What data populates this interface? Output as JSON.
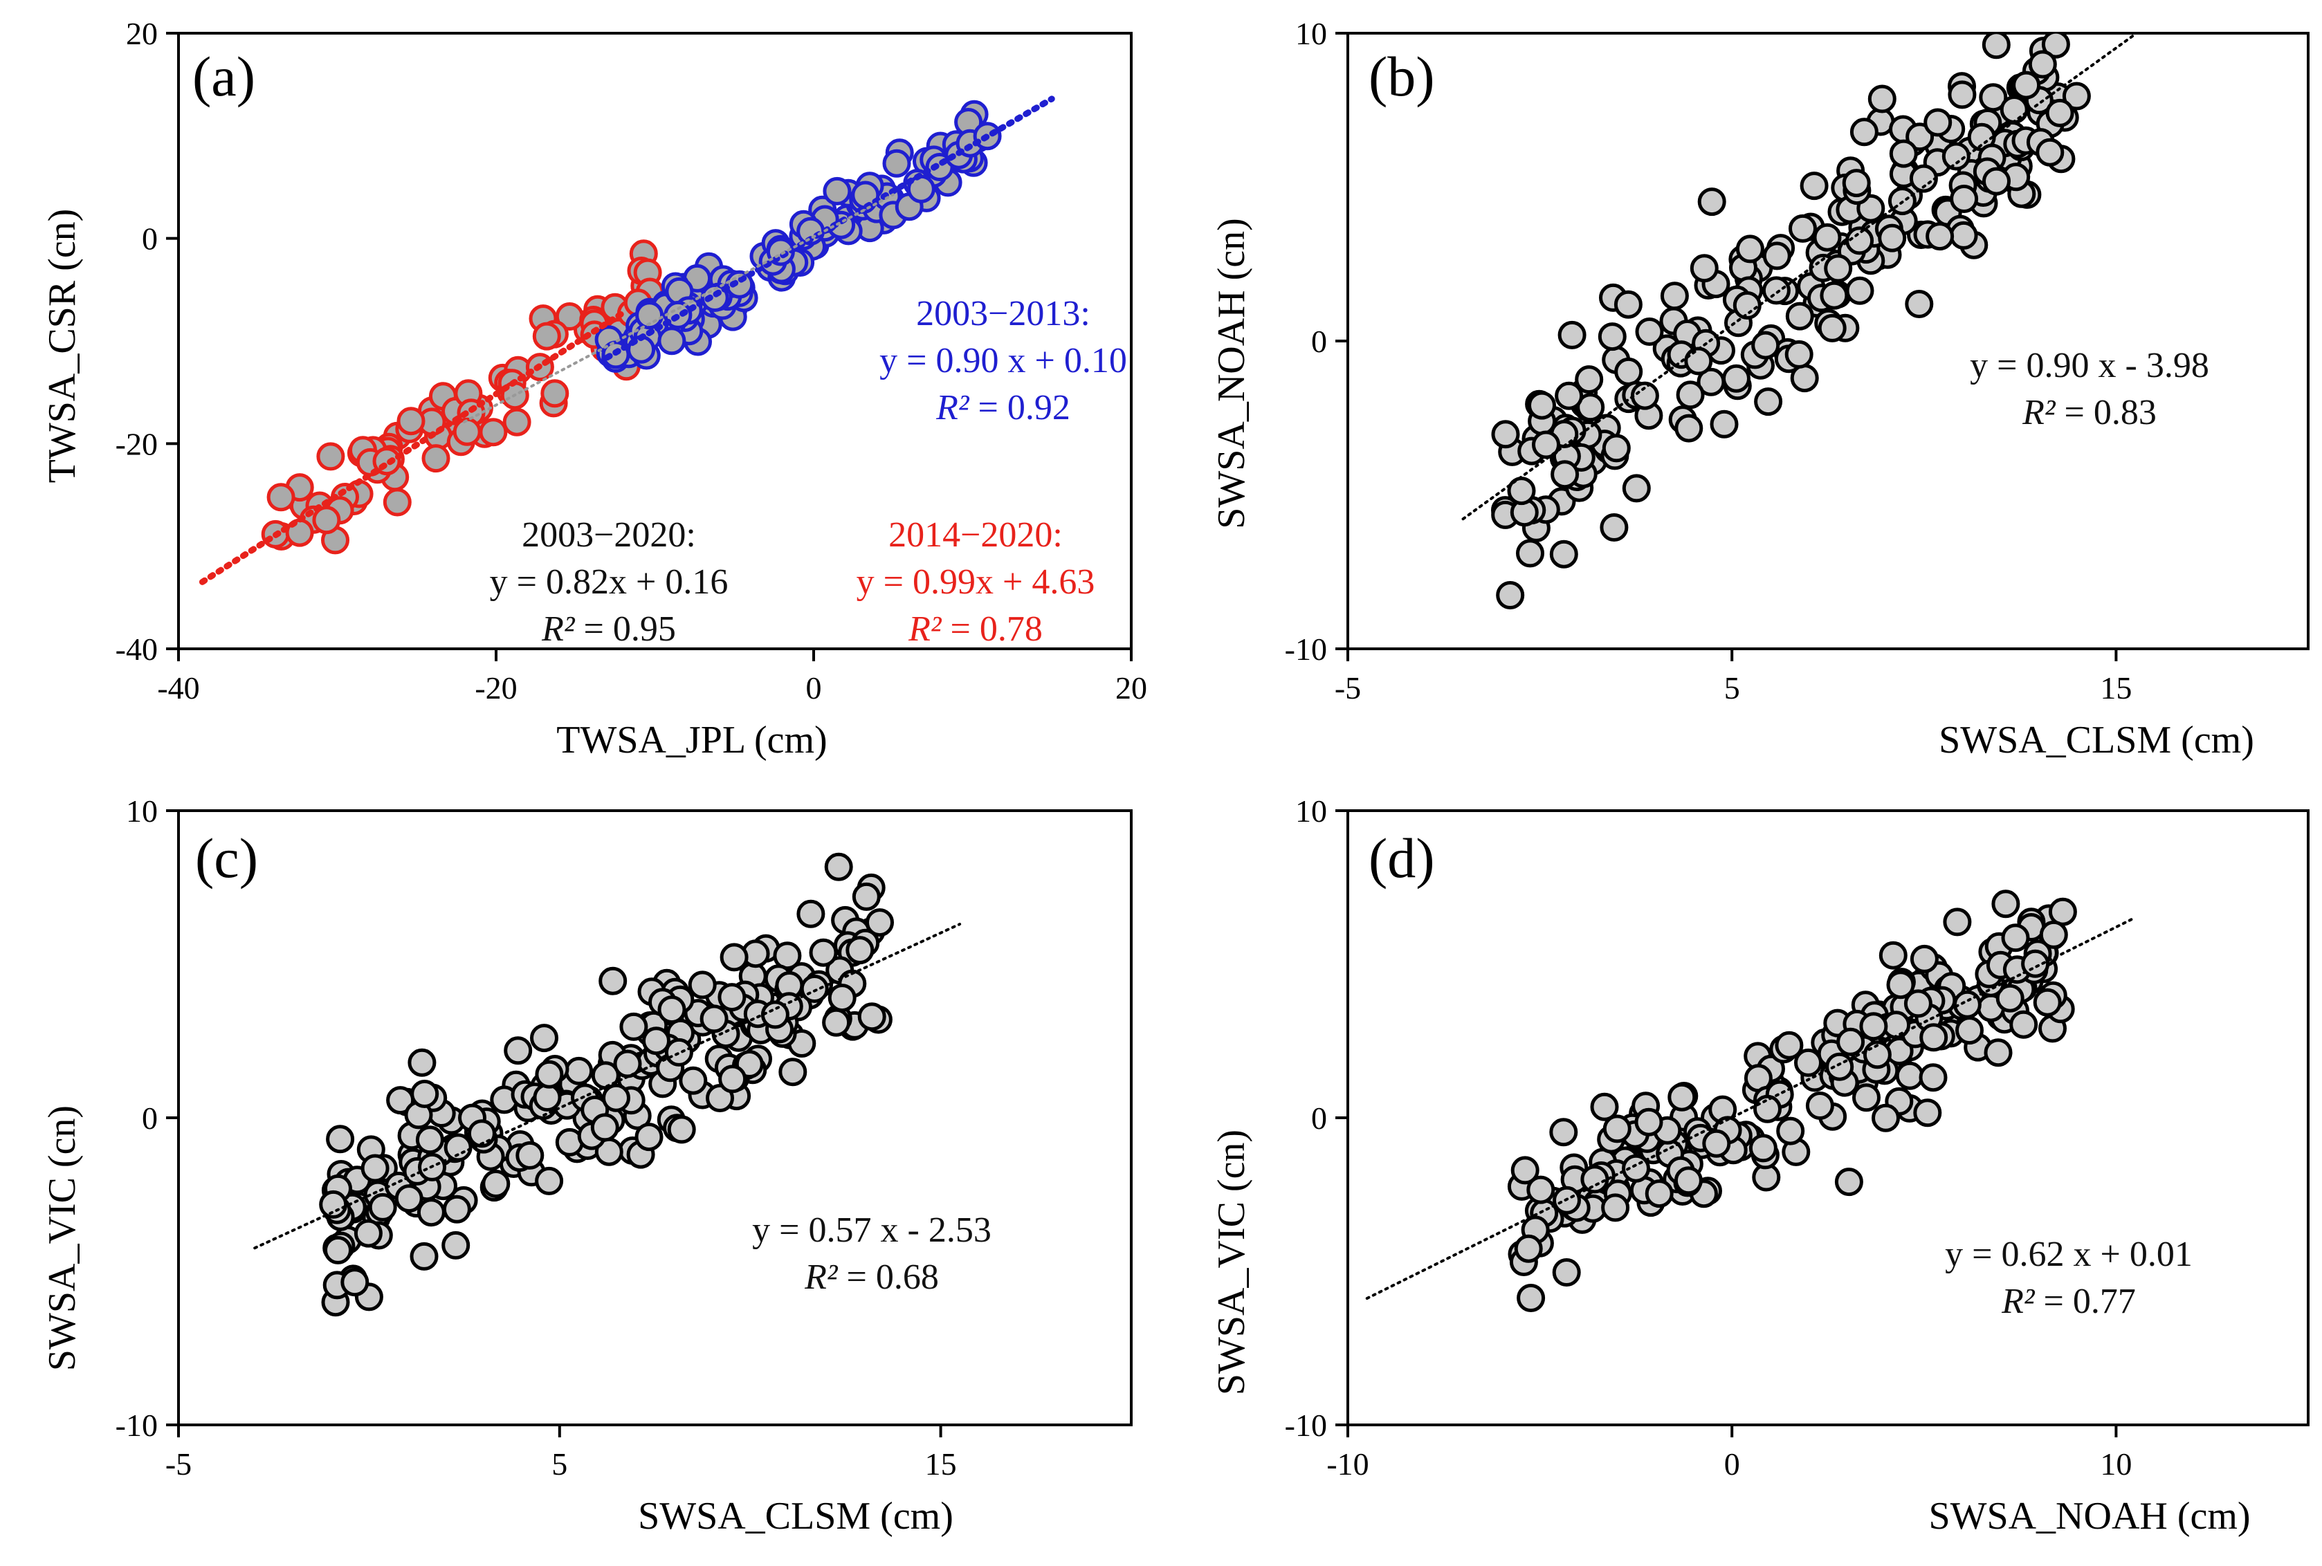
{
  "chart_data": [
    {
      "id": "a",
      "type": "scatter",
      "panel_label": "(a)",
      "xlabel": "TWSA_JPL (cm)",
      "ylabel": "TWSA_CSR (cn)",
      "xlim": [
        -40,
        20
      ],
      "ylim": [
        -40,
        20
      ],
      "xticks": [
        -40,
        -20,
        0,
        20
      ],
      "yticks": [
        -40,
        -20,
        0,
        20
      ],
      "xtick_labels": [
        "-40",
        "-20",
        "0",
        "20"
      ],
      "ytick_labels": [
        "-40",
        "-20",
        "0",
        "20"
      ],
      "series": [
        {
          "name": "2014-2020",
          "edge_color": "#e8221b",
          "fill_color": "#aaaaaa",
          "x_range": [
            -34,
            -10
          ],
          "slope": 0.99,
          "intercept": 4.63,
          "n": 84,
          "noise": 2.4
        },
        {
          "name": "2003-2013",
          "edge_color": "#1f1fd0",
          "fill_color": "#aaaaaa",
          "x_range": [
            -13,
            11
          ],
          "slope": 0.9,
          "intercept": 0.1,
          "n": 132,
          "noise": 1.7
        }
      ],
      "trendlines": [
        {
          "slope": 0.99,
          "intercept": 4.63,
          "x": [
            -38.5,
            -12
          ],
          "color": "#e8221b",
          "style": "thick"
        },
        {
          "slope": 0.9,
          "intercept": 0.1,
          "x": [
            -13,
            15
          ],
          "color": "#1f1fd0",
          "style": "thick"
        },
        {
          "slope": 0.82,
          "intercept": 0.16,
          "x": [
            -22,
            5
          ],
          "color": "#999999",
          "style": "thin"
        }
      ],
      "annotations": [
        {
          "lines": [
            "2003−2013:",
            "y = 0.90 x + 0.10",
            "R² = 0.92"
          ],
          "color": "#1f1fd0"
        },
        {
          "lines": [
            "2003−2020:",
            "y = 0.82x + 0.16",
            "R² = 0.95"
          ],
          "color": "#111111"
        },
        {
          "lines": [
            "2014−2020:",
            "y = 0.99x + 4.63",
            "R² = 0.78"
          ],
          "color": "#e8221b"
        }
      ]
    },
    {
      "id": "b",
      "type": "scatter",
      "panel_label": "(b)",
      "xlabel": "SWSA_CLSM (cm)",
      "ylabel": "SWSA_NOAH (cn)",
      "xlim": [
        -5,
        20
      ],
      "ylim": [
        -10,
        10
      ],
      "xticks": [
        -5,
        5,
        15
      ],
      "yticks": [
        -10,
        0,
        10
      ],
      "xtick_labels": [
        "-5",
        "5",
        "15"
      ],
      "ytick_labels": [
        "-10",
        "0",
        "10"
      ],
      "series": [
        {
          "name": "SWSA",
          "edge_color": "#000000",
          "fill_color": "#cccccc",
          "x_range": [
            -1,
            14
          ],
          "slope": 0.9,
          "intercept": -3.98,
          "n": 228,
          "noise": 1.6
        }
      ],
      "trendlines": [
        {
          "slope": 0.9,
          "intercept": -3.98,
          "x": [
            -2,
            15.5
          ],
          "color": "#000000",
          "style": "thin"
        }
      ],
      "annotations": [
        {
          "lines": [
            "y = 0.90 x - 3.98",
            "R² = 0.83"
          ],
          "color": "#111111"
        }
      ]
    },
    {
      "id": "c",
      "type": "scatter",
      "panel_label": "(c)",
      "xlabel": "SWSA_CLSM (cm)",
      "ylabel": "SWSA_VIC (cn)",
      "xlim": [
        -5,
        20
      ],
      "ylim": [
        -10,
        10
      ],
      "xticks": [
        -5,
        5,
        15
      ],
      "yticks": [
        -10,
        0,
        10
      ],
      "xtick_labels": [
        "-5",
        "5",
        "15"
      ],
      "ytick_labels": [
        "-10",
        "0",
        "10"
      ],
      "series": [
        {
          "name": "SWSA",
          "edge_color": "#000000",
          "fill_color": "#cccccc",
          "x_range": [
            -1,
            13.5
          ],
          "slope": 0.57,
          "intercept": -2.53,
          "n": 228,
          "noise": 1.35
        }
      ],
      "trendlines": [
        {
          "slope": 0.57,
          "intercept": -2.53,
          "x": [
            -3,
            15.5
          ],
          "color": "#000000",
          "style": "thin"
        }
      ],
      "annotations": [
        {
          "lines": [
            "y = 0.57 x - 2.53",
            "R² = 0.68"
          ],
          "color": "#111111"
        }
      ]
    },
    {
      "id": "d",
      "type": "scatter",
      "panel_label": "(d)",
      "xlabel": "SWSA_NOAH (cm)",
      "ylabel": "SWSA_VIC (cn)",
      "xlim": [
        -10,
        15
      ],
      "ylim": [
        -10,
        10
      ],
      "xticks": [
        -10,
        0,
        10
      ],
      "yticks": [
        -10,
        0,
        10
      ],
      "xtick_labels": [
        "-10",
        "0",
        "10"
      ],
      "ytick_labels": [
        "-10",
        "0",
        "10"
      ],
      "series": [
        {
          "name": "SWSA",
          "edge_color": "#000000",
          "fill_color": "#cccccc",
          "x_range": [
            -5.5,
            8.7
          ],
          "slope": 0.62,
          "intercept": 0.01,
          "n": 228,
          "noise": 1.1
        }
      ],
      "trendlines": [
        {
          "slope": 0.62,
          "intercept": 0.01,
          "x": [
            -9.5,
            10.5
          ],
          "color": "#000000",
          "style": "thin"
        }
      ],
      "annotations": [
        {
          "lines": [
            "y = 0.62 x + 0.01",
            "R² = 0.77"
          ],
          "color": "#111111"
        }
      ]
    }
  ]
}
